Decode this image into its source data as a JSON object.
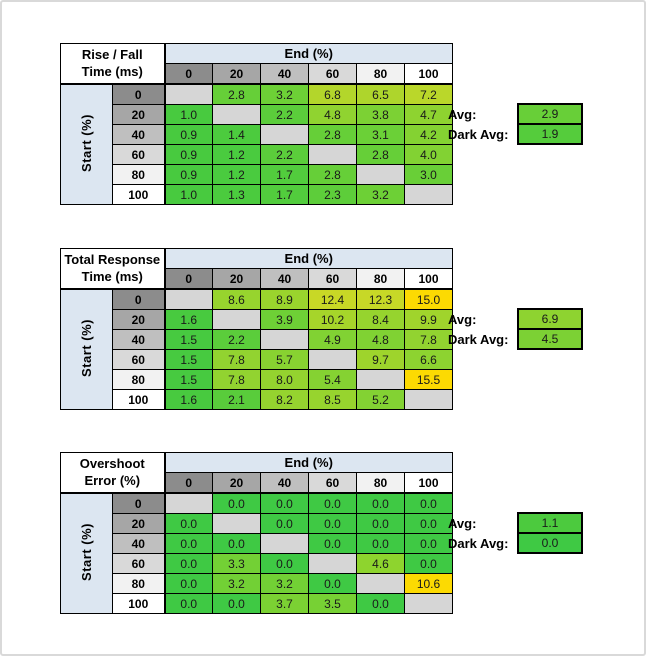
{
  "labels": {
    "end": "End (%)",
    "start": "Start (%)",
    "avg": "Avg:",
    "dark_avg": "Dark Avg:"
  },
  "col_headers": [
    "0",
    "20",
    "40",
    "60",
    "80",
    "100"
  ],
  "row_headers": [
    "0",
    "20",
    "40",
    "60",
    "80",
    "100"
  ],
  "header_shades": [
    "#8c8c8c",
    "#a6a6a6",
    "#bfbfbf",
    "#d9d9d9",
    "#f2f2f2",
    "#ffffff"
  ],
  "colors": {
    "panel_blue": "#dce6f1",
    "blank_cell": "#d6d6d6",
    "green_min": "#3fc944",
    "yellow_max": "#fcda02",
    "grid": "#000000",
    "frame": "#d9d9d9",
    "value_text": "#1a1a1a"
  },
  "tables": [
    {
      "title1": "Rise / Fall",
      "title2": "Time (ms)"
    },
    {
      "title1": "Total Response",
      "title2": "Time (ms)"
    },
    {
      "title1": "Overshoot",
      "title2": "Error (%)"
    }
  ],
  "chart_data": [
    {
      "type": "heatmap",
      "title": "Rise / Fall Time (ms)",
      "x_label": "End (%)",
      "y_label": "Start (%)",
      "x": [
        0,
        20,
        40,
        60,
        80,
        100
      ],
      "y": [
        0,
        20,
        40,
        60,
        80,
        100
      ],
      "values": [
        [
          null,
          2.8,
          3.2,
          6.8,
          6.5,
          7.2
        ],
        [
          1.0,
          null,
          2.2,
          4.8,
          3.8,
          4.7
        ],
        [
          0.9,
          1.4,
          null,
          2.8,
          3.1,
          4.2
        ],
        [
          0.9,
          1.2,
          2.2,
          null,
          2.8,
          4.0
        ],
        [
          0.9,
          1.2,
          1.7,
          2.8,
          null,
          3.0
        ],
        [
          1.0,
          1.3,
          1.7,
          2.3,
          3.2,
          null
        ]
      ],
      "avg": 2.9,
      "dark_avg": 1.9
    },
    {
      "type": "heatmap",
      "title": "Total Response Time (ms)",
      "x_label": "End (%)",
      "y_label": "Start (%)",
      "x": [
        0,
        20,
        40,
        60,
        80,
        100
      ],
      "y": [
        0,
        20,
        40,
        60,
        80,
        100
      ],
      "values": [
        [
          null,
          8.6,
          8.9,
          12.4,
          12.3,
          15.0
        ],
        [
          1.6,
          null,
          3.9,
          10.2,
          8.4,
          9.9
        ],
        [
          1.5,
          2.2,
          null,
          4.9,
          4.8,
          7.8
        ],
        [
          1.5,
          7.8,
          5.7,
          null,
          9.7,
          6.6
        ],
        [
          1.5,
          7.8,
          8.0,
          5.4,
          null,
          15.5
        ],
        [
          1.6,
          2.1,
          8.2,
          8.5,
          5.2,
          null
        ]
      ],
      "avg": 6.9,
      "dark_avg": 4.5
    },
    {
      "type": "heatmap",
      "title": "Overshoot Error (%)",
      "x_label": "End (%)",
      "y_label": "Start (%)",
      "x": [
        0,
        20,
        40,
        60,
        80,
        100
      ],
      "y": [
        0,
        20,
        40,
        60,
        80,
        100
      ],
      "values": [
        [
          null,
          0.0,
          0.0,
          0.0,
          0.0,
          0.0
        ],
        [
          0.0,
          null,
          0.0,
          0.0,
          0.0,
          0.0
        ],
        [
          0.0,
          0.0,
          null,
          0.0,
          0.0,
          0.0
        ],
        [
          0.0,
          3.3,
          0.0,
          null,
          4.6,
          0.0
        ],
        [
          0.0,
          3.2,
          3.2,
          0.0,
          null,
          10.6
        ],
        [
          0.0,
          0.0,
          3.7,
          3.5,
          0.0,
          null
        ]
      ],
      "avg": 1.1,
      "dark_avg": 0.0
    }
  ],
  "cell_colors": [
    [
      [
        null,
        "#66cf38",
        "#6dd036",
        "#b3d62b",
        "#aed52c",
        "#bad72a"
      ],
      [
        "#48ca3f",
        null,
        "#5bcd3b",
        "#90d330",
        "#7cd134",
        "#8ed330"
      ],
      [
        "#48ca3f",
        "#4ccb3e",
        null,
        "#66cf38",
        "#6bd037",
        "#84d232"
      ],
      [
        "#48ca3f",
        "#4acb3f",
        "#5bcd3b",
        null,
        "#66cf38",
        "#82d233"
      ],
      [
        "#48ca3f",
        "#4acb3f",
        "#52cc3d",
        "#66cf38",
        null,
        "#69cf37"
      ],
      [
        "#48ca3f",
        "#4bcb3e",
        "#52cc3d",
        "#5dcd3a",
        "#6dd036",
        null
      ]
    ],
    [
      [
        null,
        "#97d42e",
        "#9ad42d",
        "#c8d826",
        "#c7d827",
        "#fcda02"
      ],
      [
        "#48ca3f",
        null,
        "#6ed036",
        "#a6d52a",
        "#96d42e",
        "#a0d42c"
      ],
      [
        "#47ca40",
        "#5bcd3b",
        null,
        "#81d233",
        "#80d233",
        "#92d330"
      ],
      [
        "#47ca40",
        "#92d330",
        "#88d231",
        null,
        "#9ed42c",
        "#8dd330"
      ],
      [
        "#47ca40",
        "#92d330",
        "#94d32f",
        "#85d232",
        null,
        "#fcda02"
      ],
      [
        "#48ca3f",
        "#59cc3b",
        "#95d32f",
        "#97d42e",
        "#83d233",
        null
      ]
    ],
    [
      [
        null,
        "#3fc944",
        "#3fc944",
        "#3fc944",
        "#3fc944",
        "#3fc944"
      ],
      [
        "#3fc944",
        null,
        "#3fc944",
        "#3fc944",
        "#3fc944",
        "#3fc944"
      ],
      [
        "#3fc944",
        "#3fc944",
        null,
        "#3fc944",
        "#3fc944",
        "#3fc944"
      ],
      [
        "#3fc944",
        "#73d035",
        "#3fc944",
        null,
        "#8ed42e",
        "#3fc944"
      ],
      [
        "#3fc944",
        "#72d035",
        "#72d035",
        "#3fc944",
        null,
        "#fcda02"
      ],
      [
        "#3fc944",
        "#3fc944",
        "#7bd133",
        "#77d134",
        "#3fc944",
        null
      ]
    ]
  ],
  "avg_colors": [
    {
      "avg": "#68cf38",
      "dark": "#55cc3c"
    },
    {
      "avg": "#8ed330",
      "dark": "#7cd134"
    },
    {
      "avg": "#4cca3e",
      "dark": "#3fc944"
    }
  ]
}
